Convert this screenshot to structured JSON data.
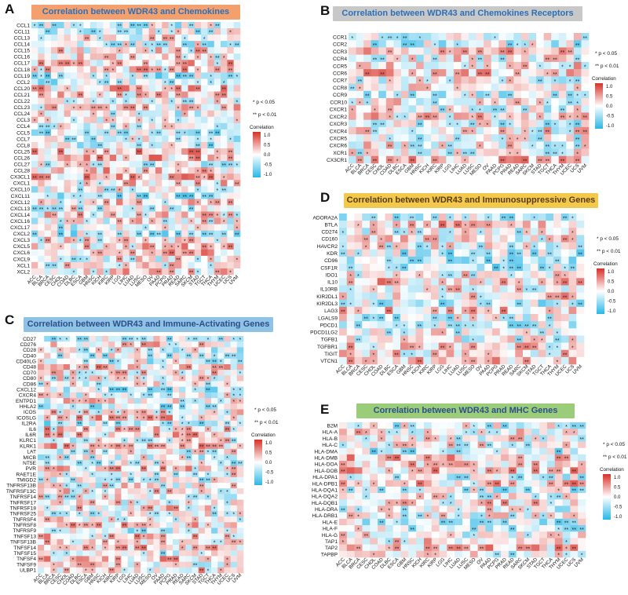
{
  "cancers": [
    "ACC",
    "BLCA",
    "BRCA",
    "CESC",
    "CHOL",
    "COAD",
    "DLBC",
    "ESCA",
    "GBM",
    "HNSC",
    "KICH",
    "KIRC",
    "KIRP",
    "LGG",
    "LIHC",
    "LUAD",
    "LUSC",
    "MESO",
    "OV",
    "PAAD",
    "PCPG",
    "PRAD",
    "READ",
    "SARC",
    "SKCM",
    "STAD",
    "TGCT",
    "THCA",
    "THYM",
    "UCEC",
    "UCS",
    "UVM"
  ],
  "legend": {
    "sig1": "* p < 0.05",
    "sig2": "** p < 0.01",
    "title": "Correlation",
    "ticks": [
      "1.0",
      "0.5",
      "0.0",
      "-0.5",
      "-1.0"
    ]
  },
  "colors": {
    "positive": "#d73027",
    "negative": "#29b6e6",
    "neutral": "#ffffff"
  },
  "chart_data": [
    {
      "id": "A",
      "type": "heatmap",
      "title": "Correlation between WDR43 and Chemokines",
      "title_bg": "#f4a06e",
      "title_color": "#2d6fb5",
      "genes": [
        "CCL1",
        "CCL11",
        "CCL13",
        "CCL14",
        "CCL15",
        "CCL16",
        "CCL17",
        "CCL18",
        "CCL19",
        "CCL2",
        "CCL20",
        "CCL21",
        "CCL22",
        "CCL23",
        "CCL24",
        "CCL3",
        "CCL4",
        "CCL5",
        "CCL7",
        "CCL8",
        "CCL25",
        "CCL26",
        "CCL27",
        "CCL28",
        "CX3CL1",
        "CXCL1",
        "CXCL10",
        "CXCL11",
        "CXCL12",
        "CXCL13",
        "CXCL14",
        "CXCL16",
        "CXCL17",
        "CXCL2",
        "CXCL3",
        "CXCL5",
        "CXCL6",
        "CXCL9",
        "XCL1",
        "XCL2"
      ],
      "seed": 11
    },
    {
      "id": "B",
      "type": "heatmap",
      "title": "Correlation between WDR43 and Chemokines Receptors",
      "title_bg": "#c8c8c8",
      "title_color": "#2d6fb5",
      "genes": [
        "CCR1",
        "CCR2",
        "CCR3",
        "CCR4",
        "CCR5",
        "CCR6",
        "CCR7",
        "CCR8",
        "CCR9",
        "CCR10",
        "CXCR1",
        "CXCR2",
        "CXCR3",
        "CXCR4",
        "CXCR5",
        "CXCR6",
        "XCR1",
        "CX3CR1"
      ],
      "seed": 23
    },
    {
      "id": "C",
      "type": "heatmap",
      "title": "Correlation between WDR43 and Immune-Activating Genes",
      "title_bg": "#8ec3e6",
      "title_color": "#2d4e8a",
      "genes": [
        "CD27",
        "CD276",
        "CD28",
        "CD40",
        "CD40LG",
        "CD48",
        "CD70",
        "CD80",
        "CD86",
        "CXCL12",
        "CXCR4",
        "ENTPD1",
        "HHLA2",
        "ICOS",
        "ICOSLG",
        "IL2RA",
        "IL6",
        "IL6R",
        "KLRC1",
        "KLRK1",
        "LAT",
        "MICB",
        "NT5E",
        "PVR",
        "RAET1E",
        "TMIGD2",
        "TNFRSF13B",
        "TNFRSF13C",
        "TNFRSF14",
        "TNFRSF17",
        "TNFRSF18",
        "TNFRSF25",
        "TNFRSF4",
        "TNFRSF8",
        "TNFRSF9",
        "TNFSF13",
        "TNFSF13B",
        "TNFSF14",
        "TNFSF15",
        "TNFSF4",
        "TNFSF9",
        "ULBP1"
      ],
      "seed": 37
    },
    {
      "id": "D",
      "type": "heatmap",
      "title": "Correlation between WDR43 and Immunosuppressive Genes",
      "title_bg": "#f2c94c",
      "title_color": "#5a3b0c",
      "genes": [
        "ADORA2A",
        "BTLA",
        "CD274",
        "CD160",
        "HAVCR2",
        "KDR",
        "CD96",
        "CSF1R",
        "IDO1",
        "IL10",
        "IL10RB",
        "KIR2DL1",
        "KIR2DL3",
        "LAG3",
        "LGALS9",
        "PDCD1",
        "PDCD1LG2",
        "TGFB1",
        "TGFBR1",
        "TIGIT",
        "VTCN1"
      ],
      "seed": 53
    },
    {
      "id": "E",
      "type": "heatmap",
      "title": "Correlation between WDR43 and MHC Genes",
      "title_bg": "#9bcc7a",
      "title_color": "#2d4e8a",
      "genes": [
        "B2M",
        "HLA-A",
        "HLA-B",
        "HLA-C",
        "HLA-DMA",
        "HLA-DMB",
        "HLA-DOA",
        "HLA-DOB",
        "HLA-DPA1",
        "HLA-DPB1",
        "HLA-DQA1",
        "HLA-DQA2",
        "HLA-DQB1",
        "HLA-DRA",
        "HLA-DRB1",
        "HLA-E",
        "HLA-F",
        "HLA-G",
        "TAP1",
        "TAP2",
        "TAPBP"
      ],
      "seed": 71
    }
  ]
}
